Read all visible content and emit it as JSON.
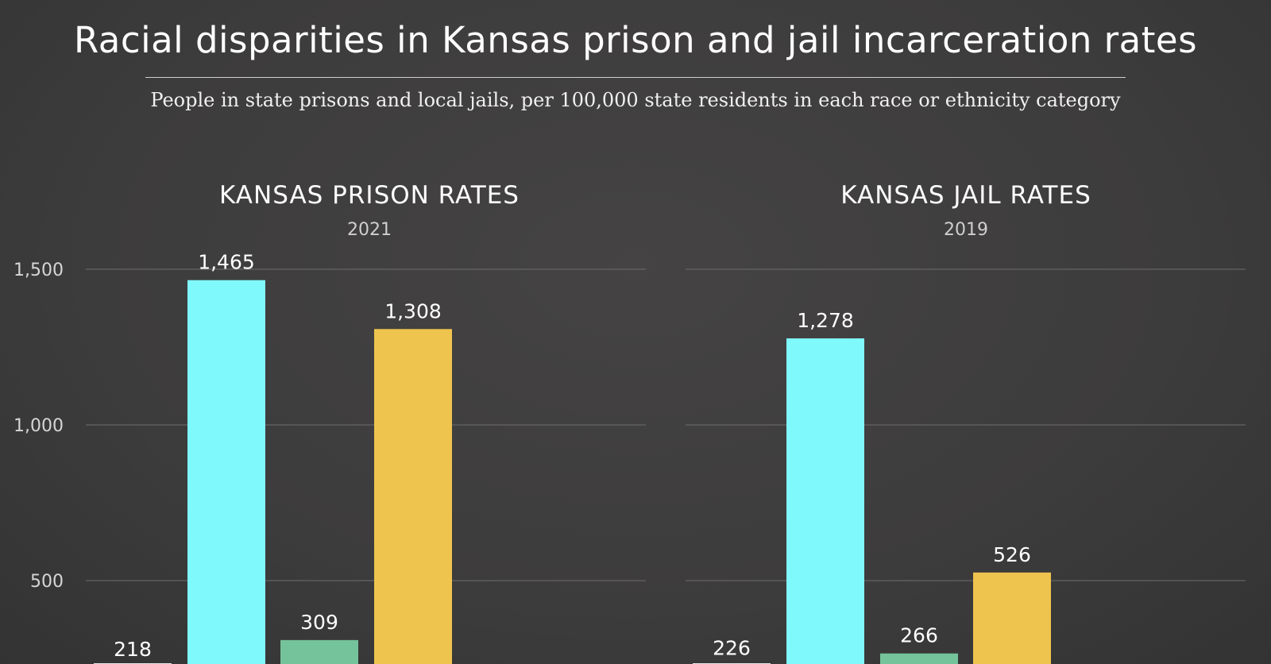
{
  "title": "Racial disparities in Kansas prison and jail incarceration rates",
  "subtitle": "People in state prisons and local jails, per 100,000 state residents in each race or ethnicity category",
  "chart_data": [
    {
      "type": "bar",
      "title": "KANSAS PRISON RATES",
      "subtitle": "2021",
      "values": [
        218,
        1465,
        309,
        1308
      ],
      "value_labels": [
        "218",
        "1,465",
        "309",
        "1,308"
      ],
      "colors": [
        "#e8e8e8",
        "#80F9FD",
        "#74C39A",
        "#EEC44F"
      ],
      "yticks": [
        500,
        1000,
        1500
      ],
      "ytick_labels": [
        "500",
        "1,000",
        "1,500"
      ],
      "ylim": [
        0,
        1500
      ],
      "grid": true
    },
    {
      "type": "bar",
      "title": "KANSAS JAIL RATES",
      "subtitle": "2019",
      "values": [
        226,
        1278,
        266,
        526
      ],
      "value_labels": [
        "226",
        "1,278",
        "266",
        "526"
      ],
      "colors": [
        "#e8e8e8",
        "#80F9FD",
        "#74C39A",
        "#EEC44F"
      ],
      "yticks": [
        500,
        1000,
        1500
      ],
      "ylim": [
        0,
        1500
      ],
      "grid": true
    }
  ]
}
